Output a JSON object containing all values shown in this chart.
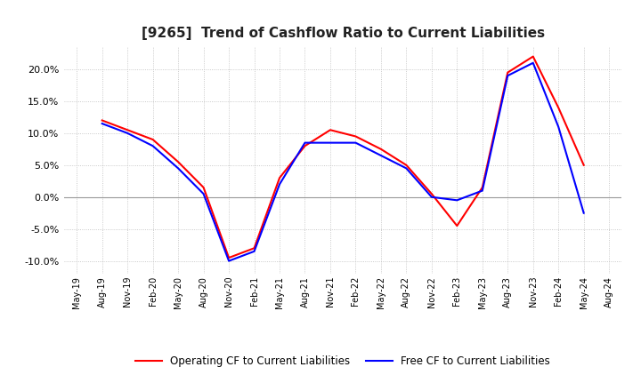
{
  "title": "[9265]  Trend of Cashflow Ratio to Current Liabilities",
  "title_fontsize": 11,
  "x_labels": [
    "May-19",
    "Aug-19",
    "Nov-19",
    "Feb-20",
    "May-20",
    "Aug-20",
    "Nov-20",
    "Feb-21",
    "May-21",
    "Aug-21",
    "Nov-21",
    "Feb-22",
    "May-22",
    "Aug-22",
    "Nov-22",
    "Feb-23",
    "May-23",
    "Aug-23",
    "Nov-23",
    "Feb-24",
    "May-24",
    "Aug-24"
  ],
  "operating_cf": [
    null,
    12.0,
    10.5,
    9.0,
    5.5,
    1.5,
    -9.5,
    -8.0,
    3.0,
    8.0,
    10.5,
    9.5,
    7.5,
    5.0,
    0.5,
    -4.5,
    1.5,
    19.5,
    22.0,
    14.0,
    5.0,
    null
  ],
  "free_cf": [
    null,
    11.5,
    10.0,
    8.0,
    4.5,
    0.5,
    -10.0,
    -8.5,
    2.0,
    8.5,
    8.5,
    8.5,
    6.5,
    4.5,
    0.0,
    -0.5,
    1.0,
    19.0,
    21.0,
    11.0,
    -2.5,
    null
  ],
  "ylim": [
    -0.12,
    0.235
  ],
  "yticks": [
    -0.1,
    -0.05,
    0.0,
    0.05,
    0.1,
    0.15,
    0.2
  ],
  "operating_color": "#ff0000",
  "free_color": "#0000ff",
  "background_color": "#ffffff",
  "grid_color": "#bbbbbb",
  "legend_operating": "Operating CF to Current Liabilities",
  "legend_free": "Free CF to Current Liabilities"
}
